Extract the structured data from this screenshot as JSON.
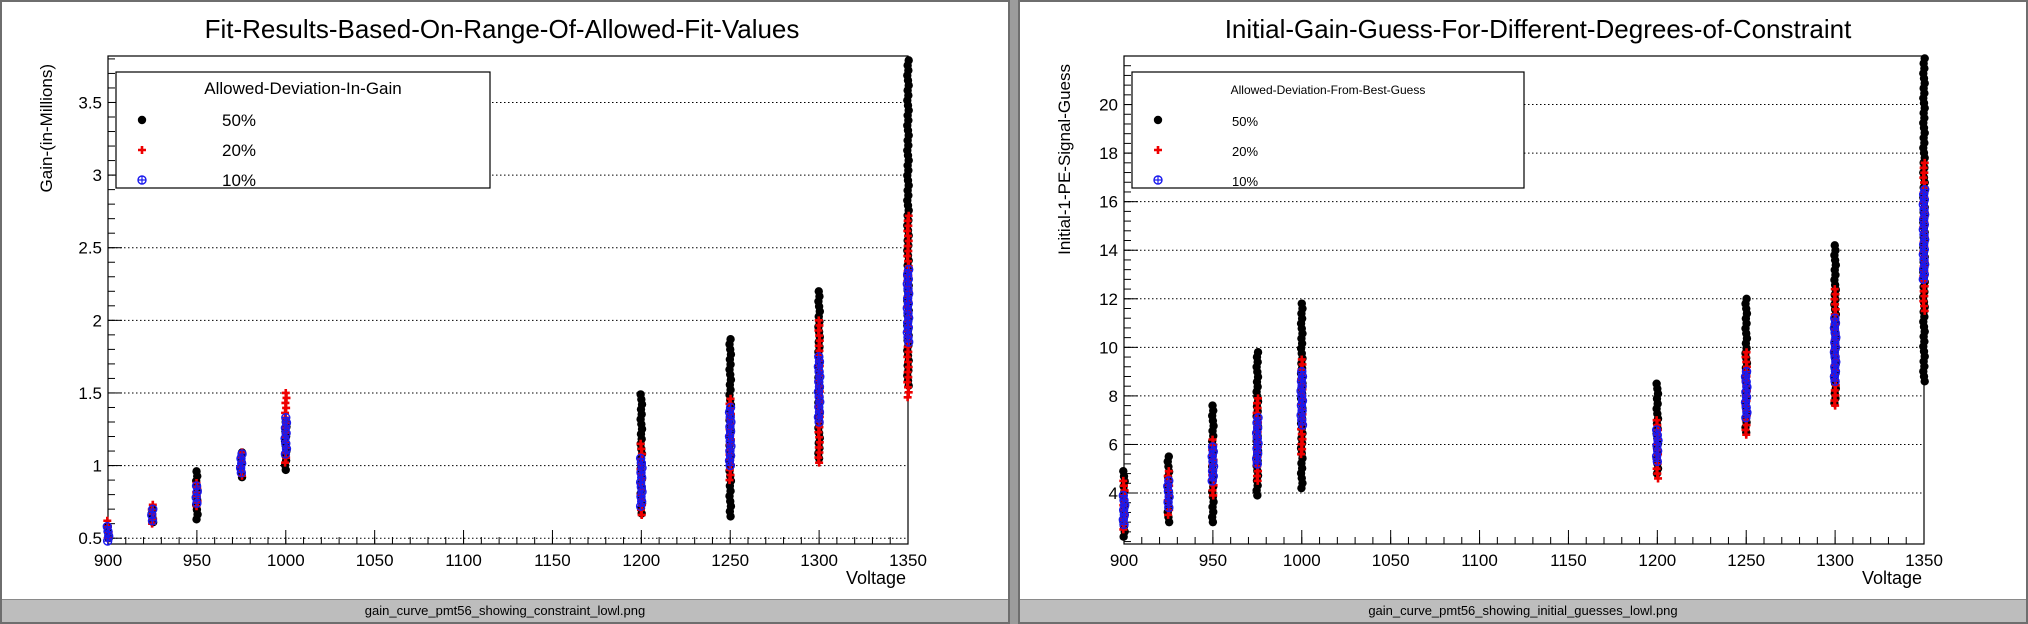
{
  "chart_data": [
    {
      "type": "scatter",
      "title": "Fit-Results-Based-On-Range-Of-Allowed-Fit-Values",
      "xlabel": "Voltage",
      "ylabel": "Gain-(in-Millions)",
      "xlim": [
        900,
        1350
      ],
      "ylim": [
        0.46,
        3.82
      ],
      "xticks": [
        900,
        950,
        1000,
        1050,
        1100,
        1150,
        1200,
        1250,
        1300,
        1350
      ],
      "yticks": [
        0.5,
        1,
        1.5,
        2,
        2.5,
        3,
        3.5
      ],
      "ytick_labels": [
        "0.5",
        "1",
        "1.5",
        "2",
        "2.5",
        "3",
        "3.5"
      ],
      "grid": "horizontal",
      "legend": {
        "position": "top-left",
        "title": "Allowed-Deviation-In-Gain",
        "entries": [
          "50%",
          "20%",
          "10%"
        ]
      },
      "caption": "gain_curve_pmt56_showing_constraint_lowl.png",
      "series": [
        {
          "name": "50%",
          "color": "#000000",
          "marker": "circle",
          "x": [
            900,
            925,
            950,
            975,
            1000,
            1200,
            1250,
            1300,
            1350
          ],
          "min": [
            0.5,
            0.61,
            0.63,
            0.92,
            0.97,
            0.67,
            0.65,
            1.05,
            1.55
          ],
          "max": [
            0.58,
            0.7,
            0.96,
            1.09,
            1.3,
            1.49,
            1.87,
            2.2,
            3.79
          ]
        },
        {
          "name": "20%",
          "color": "#ee0000",
          "marker": "cross",
          "x": [
            900,
            925,
            950,
            975,
            1000,
            1200,
            1250,
            1300,
            1350
          ],
          "min": [
            0.5,
            0.6,
            0.72,
            0.93,
            1.02,
            0.66,
            0.9,
            1.02,
            1.47
          ],
          "max": [
            0.62,
            0.73,
            0.88,
            1.09,
            1.5,
            1.15,
            1.46,
            2.0,
            2.72
          ]
        },
        {
          "name": "10%",
          "color": "#1a1aee",
          "marker": "crosscircle",
          "x": [
            900,
            925,
            950,
            975,
            1000,
            1200,
            1250,
            1300,
            1350
          ],
          "min": [
            0.48,
            0.62,
            0.74,
            0.95,
            1.08,
            0.72,
            1.0,
            1.3,
            1.85
          ],
          "max": [
            0.58,
            0.7,
            0.86,
            1.08,
            1.33,
            1.05,
            1.4,
            1.75,
            2.35
          ]
        }
      ]
    },
    {
      "type": "scatter",
      "title": "Initial-Gain-Guess-For-Different-Degrees-of-Constraint",
      "xlabel": "Voltage",
      "ylabel": "Initial-1-PE-Signal-Guess",
      "xlim": [
        900,
        1350
      ],
      "ylim": [
        1.9,
        22.0
      ],
      "xticks": [
        900,
        950,
        1000,
        1050,
        1100,
        1150,
        1200,
        1250,
        1300,
        1350
      ],
      "yticks": [
        4,
        6,
        8,
        10,
        12,
        14,
        16,
        18,
        20
      ],
      "ytick_labels": [
        "4",
        "6",
        "8",
        "10",
        "12",
        "14",
        "16",
        "18",
        "20"
      ],
      "grid": "horizontal",
      "legend": {
        "position": "top-left",
        "title": "Allowed-Deviation-From-Best-Guess",
        "entries": [
          "50%",
          "20%",
          "10%"
        ]
      },
      "caption": "gain_curve_pmt56_showing_initial_guesses_lowl.png",
      "series": [
        {
          "name": "50%",
          "color": "#000000",
          "marker": "circle",
          "x": [
            900,
            925,
            950,
            975,
            1000,
            1200,
            1250,
            1300,
            1350
          ],
          "min": [
            2.2,
            2.8,
            2.8,
            3.9,
            4.2,
            4.8,
            6.5,
            7.7,
            8.6
          ],
          "max": [
            4.9,
            5.5,
            7.6,
            9.8,
            11.8,
            8.5,
            12.0,
            14.2,
            21.9
          ]
        },
        {
          "name": "20%",
          "color": "#ee0000",
          "marker": "cross",
          "x": [
            900,
            925,
            950,
            975,
            1000,
            1200,
            1250,
            1300,
            1350
          ],
          "min": [
            2.5,
            3.1,
            3.9,
            4.5,
            5.6,
            4.6,
            6.4,
            7.6,
            11.5
          ],
          "max": [
            4.5,
            4.9,
            6.2,
            7.9,
            9.5,
            7.0,
            9.8,
            12.4,
            17.6
          ]
        },
        {
          "name": "10%",
          "color": "#1a1aee",
          "marker": "crosscircle",
          "x": [
            900,
            925,
            950,
            975,
            1000,
            1200,
            1250,
            1300,
            1350
          ],
          "min": [
            2.7,
            3.4,
            4.5,
            5.2,
            6.8,
            5.3,
            7.1,
            8.6,
            12.8
          ],
          "max": [
            3.9,
            4.5,
            5.9,
            7.1,
            9.0,
            6.6,
            9.0,
            11.2,
            16.5
          ]
        }
      ]
    }
  ]
}
